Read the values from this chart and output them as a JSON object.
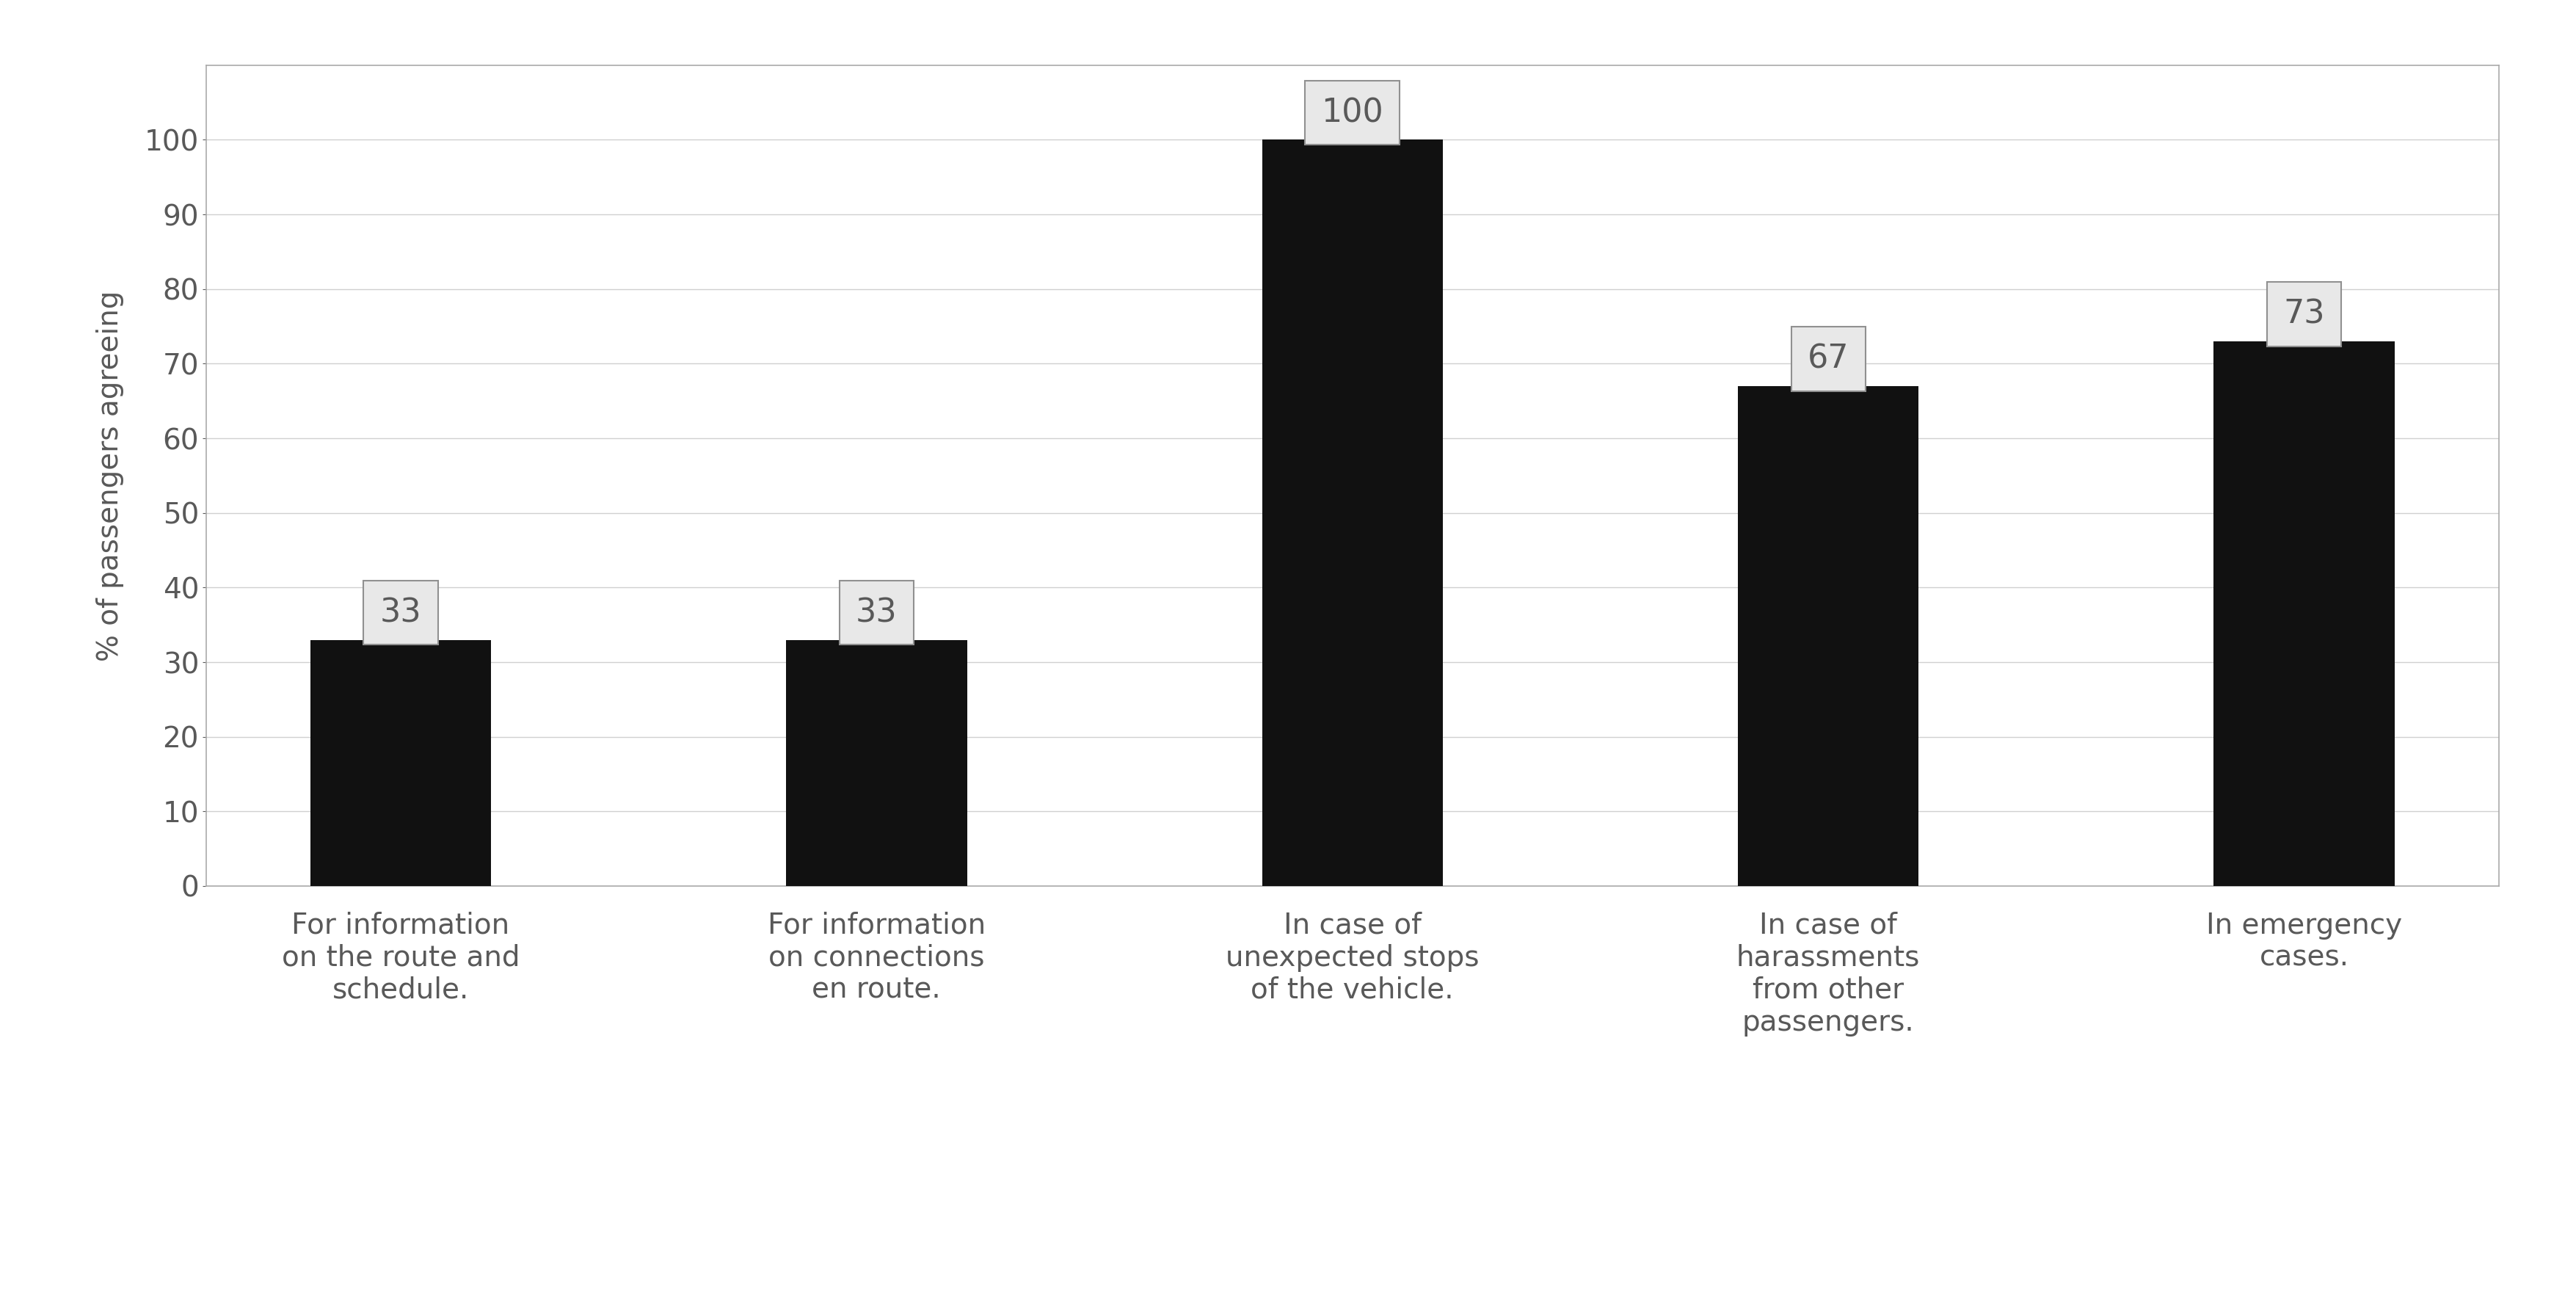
{
  "categories": [
    "For information\non the route and\nschedule.",
    "For information\non connections\nen route.",
    "In case of\nunexpected stops\nof the vehicle.",
    "In case of\nharassments\nfrom other\npassengers.",
    "In emergency\ncases."
  ],
  "values": [
    33,
    33,
    100,
    67,
    73
  ],
  "bar_color": "#111111",
  "background_color": "#ffffff",
  "ylabel": "% of passengers agreeing",
  "ylim": [
    0,
    110
  ],
  "yticks": [
    0,
    10,
    20,
    30,
    40,
    50,
    60,
    70,
    80,
    90,
    100
  ],
  "label_fontsize": 28,
  "tick_fontsize": 28,
  "annotation_fontsize": 32,
  "ylabel_fontsize": 28,
  "grid_color": "#d0d0d0",
  "text_color": "#595959",
  "annotation_box_facecolor": "#e8e8e8",
  "annotation_box_edge": "#909090",
  "border_color": "#aaaaaa",
  "bar_width": 0.38
}
